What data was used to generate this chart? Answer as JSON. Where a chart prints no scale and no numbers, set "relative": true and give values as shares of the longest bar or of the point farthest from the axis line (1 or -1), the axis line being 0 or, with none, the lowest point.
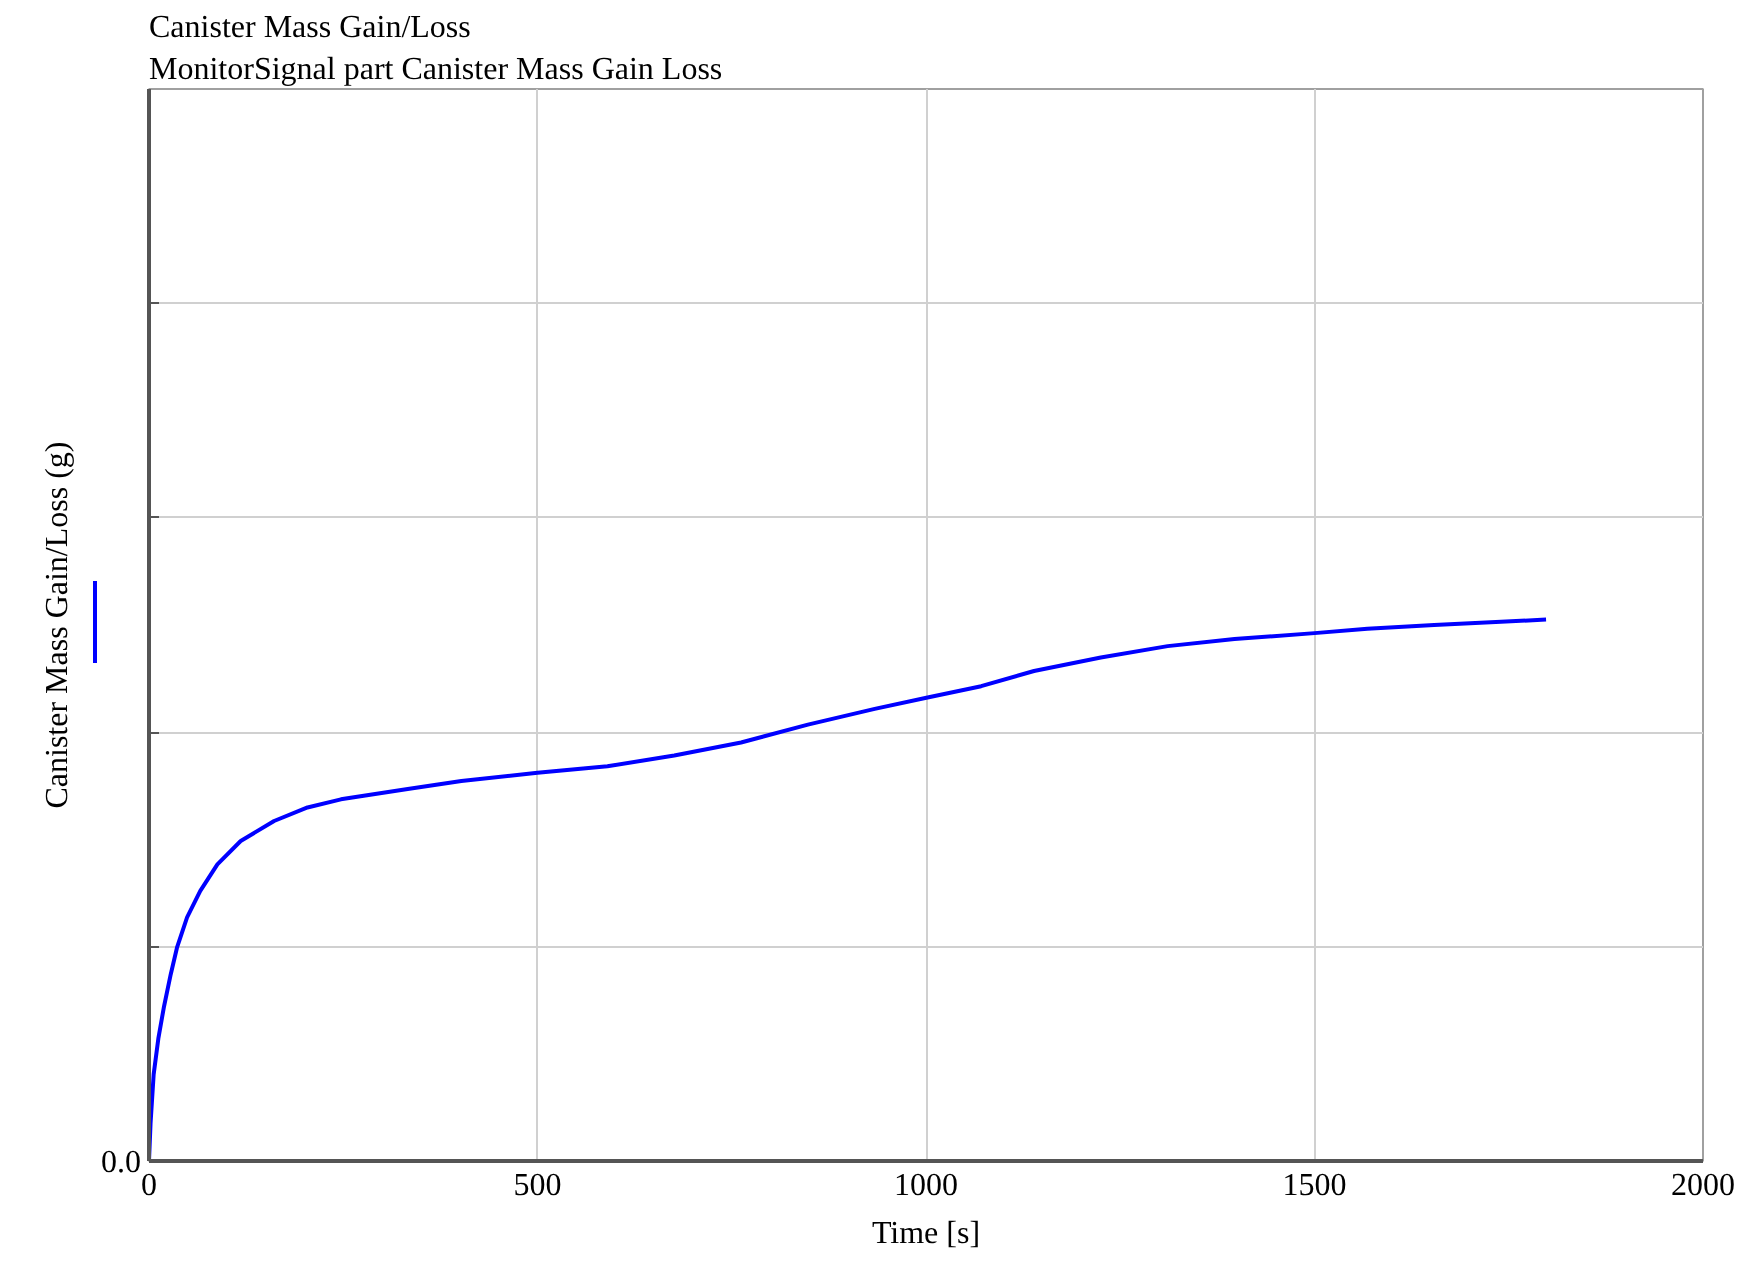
{
  "chart_data": {
    "type": "line",
    "title": "Canister Mass Gain/Loss",
    "subtitle": "MonitorSignal part Canister  Mass  Gain  Loss",
    "xlabel": "Time [s]",
    "ylabel": "Canister Mass Gain/Loss (g)",
    "relative": true,
    "x": [
      0,
      2,
      6,
      12,
      19,
      28,
      36,
      49,
      66,
      88,
      118,
      161,
      204,
      247,
      333,
      402,
      500,
      590,
      676,
      762,
      848,
      934,
      1002,
      1071,
      1139,
      1225,
      1311,
      1397,
      1500,
      1568,
      1654,
      1740,
      1798
    ],
    "series": [
      {
        "color": "#0000ff",
        "values": [
          0,
          0.07,
          0.16,
          0.226,
          0.283,
          0.345,
          0.394,
          0.45,
          0.499,
          0.548,
          0.591,
          0.628,
          0.653,
          0.668,
          0.687,
          0.702,
          0.717,
          0.729,
          0.749,
          0.773,
          0.806,
          0.835,
          0.856,
          0.877,
          0.905,
          0.93,
          0.951,
          0.964,
          0.975,
          0.983,
          0.99,
          0.996,
          1.0
        ]
      }
    ],
    "xlim": [
      0,
      2000
    ],
    "xticks": [
      0,
      500,
      1000,
      1500,
      2000
    ],
    "annotations": [
      "0.0"
    ],
    "grid": true
  }
}
